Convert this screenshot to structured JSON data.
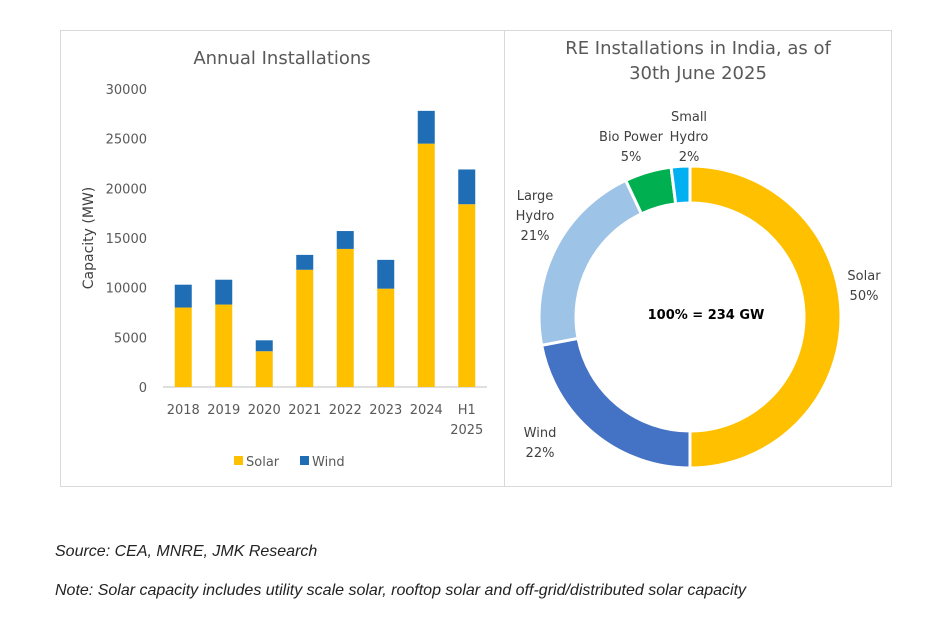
{
  "chart_data": [
    {
      "type": "bar",
      "stacked": true,
      "title": "Annual Installations",
      "ylabel": "Capacity (MW)",
      "xlabel": "",
      "ylim": [
        0,
        30000
      ],
      "yticks": [
        0,
        5000,
        10000,
        15000,
        20000,
        25000,
        30000
      ],
      "categories": [
        "2018",
        "2019",
        "2020",
        "2021",
        "2022",
        "2023",
        "2024",
        "H1 2025"
      ],
      "series": [
        {
          "name": "Solar",
          "color": "#FFC000",
          "values": [
            8000,
            8300,
            3600,
            11800,
            13900,
            9900,
            24500,
            18400
          ]
        },
        {
          "name": "Wind",
          "color": "#1F6EB5",
          "values": [
            2300,
            2500,
            1100,
            1500,
            1800,
            2900,
            3300,
            3500
          ]
        }
      ],
      "legend": "bottom"
    },
    {
      "type": "pie",
      "donut": true,
      "title": "RE Installations in India, as of 30th June 2025",
      "title_lines": [
        "RE Installations in India, as of",
        "30th June 2025"
      ],
      "center_label": "100% = 234 GW",
      "slices": [
        {
          "label": "Solar",
          "label_lines": [
            "Solar"
          ],
          "pct_text": "50%",
          "value": 50,
          "color": "#FFC000"
        },
        {
          "label": "Wind",
          "label_lines": [
            "Wind"
          ],
          "pct_text": "22%",
          "value": 22,
          "color": "#4472C4"
        },
        {
          "label": "Large Hydro",
          "label_lines": [
            "Large",
            "Hydro"
          ],
          "pct_text": "21%",
          "value": 21,
          "color": "#9DC3E6"
        },
        {
          "label": "Bio Power",
          "label_lines": [
            "Bio Power"
          ],
          "pct_text": "5%",
          "value": 5,
          "color": "#00B050"
        },
        {
          "label": "Small Hydro",
          "label_lines": [
            "Small",
            "Hydro"
          ],
          "pct_text": "2%",
          "value": 2,
          "color": "#00B0F0"
        }
      ]
    }
  ],
  "footnotes": {
    "source": "Source: CEA, MNRE, JMK Research",
    "note": "Note: Solar capacity includes utility scale solar, rooftop solar and off-grid/distributed solar capacity"
  }
}
